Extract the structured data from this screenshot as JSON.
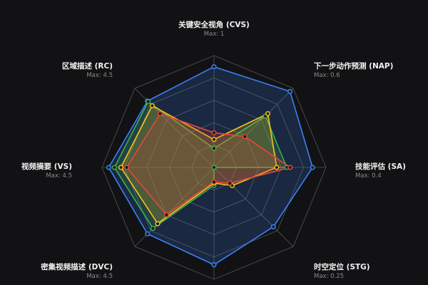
{
  "chart_data": {
    "type": "radar",
    "axes": [
      {
        "label": "关键安全视角 (CVS)",
        "max_label": "Max: 1",
        "max": 1
      },
      {
        "label": "下一步动作预测 (NAP)",
        "max_label": "Max: 0.6",
        "max": 0.6
      },
      {
        "label": "技能评估 (SA)",
        "max_label": "Max: 0.4",
        "max": 0.4
      },
      {
        "label": "时空定位 (STG)",
        "max_label": "Max: 0.25",
        "max": 0.25
      },
      {
        "label": "",
        "max_label": "",
        "max": 1
      },
      {
        "label": "密集视频描述 (DVC)",
        "max_label": "Max: 4.5",
        "max": 4.5
      },
      {
        "label": "视频摘要 (VS)",
        "max_label": "Max: 4.5",
        "max": 4.5
      },
      {
        "label": "区域描述 (RC)",
        "max_label": "Max: 4.5",
        "max": 4.5
      }
    ],
    "grid_rings": 5,
    "series": [
      {
        "color": "#3b82f6",
        "values": [
          0.9,
          0.576,
          0.352,
          0.1875,
          0.87,
          3.78,
          4.23,
          3.78
        ]
      },
      {
        "color": "#3fae4a",
        "values": [
          0.17,
          0.39,
          0.26,
          0.0,
          0.16,
          3.47,
          4.0,
          3.74
        ]
      },
      {
        "color": "#f5c518",
        "values": [
          0.25,
          0.408,
          0.224,
          0.0575,
          0.14,
          3.2,
          3.74,
          3.51
        ]
      },
      {
        "color": "#e5483b",
        "values": [
          0.31,
          0.234,
          0.272,
          0.05,
          0.13,
          2.7,
          3.51,
          3.06
        ]
      }
    ]
  }
}
